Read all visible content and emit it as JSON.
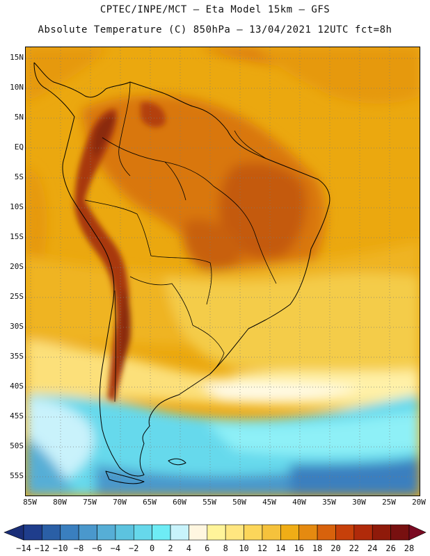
{
  "header": {
    "line1": "CPTEC/INPE/MCT —  Eta Model 15km — GFS",
    "line2": "Absolute Temperature (C) 850hPa — 13/04/2021 12UTC fct=8h"
  },
  "map": {
    "lat_labels": [
      "15N",
      "10N",
      "5N",
      "EQ",
      "5S",
      "10S",
      "15S",
      "20S",
      "25S",
      "30S",
      "35S",
      "40S",
      "45S",
      "50S",
      "55S"
    ],
    "lon_labels": [
      "85W",
      "80W",
      "75W",
      "70W",
      "65W",
      "60W",
      "55W",
      "50W",
      "45W",
      "40W",
      "35W",
      "30W",
      "25W",
      "20W"
    ],
    "lat_range": [
      17,
      -58
    ],
    "lon_range": [
      -86,
      -20
    ]
  },
  "colorbar": {
    "labels": [
      "-14",
      "-12",
      "-10",
      "-8",
      "-6",
      "-4",
      "-2",
      "0",
      "2",
      "4",
      "6",
      "8",
      "10",
      "12",
      "14",
      "16",
      "18",
      "20",
      "22",
      "24",
      "26",
      "28"
    ],
    "colors": [
      "#1f3d8c",
      "#2a5fa6",
      "#3a7fbf",
      "#4a98cc",
      "#56aed6",
      "#5cc3df",
      "#66d8eb",
      "#6eecf5",
      "#c8f3fb",
      "#fff6e0",
      "#fff49a",
      "#ffe680",
      "#fcd65a",
      "#f5c23c",
      "#f0ad16",
      "#e58a10",
      "#d8620c",
      "#c7400a",
      "#b02a0a",
      "#8f1a0a",
      "#781010"
    ],
    "low_color": "#1a2e78",
    "high_color": "#7a0a22"
  }
}
